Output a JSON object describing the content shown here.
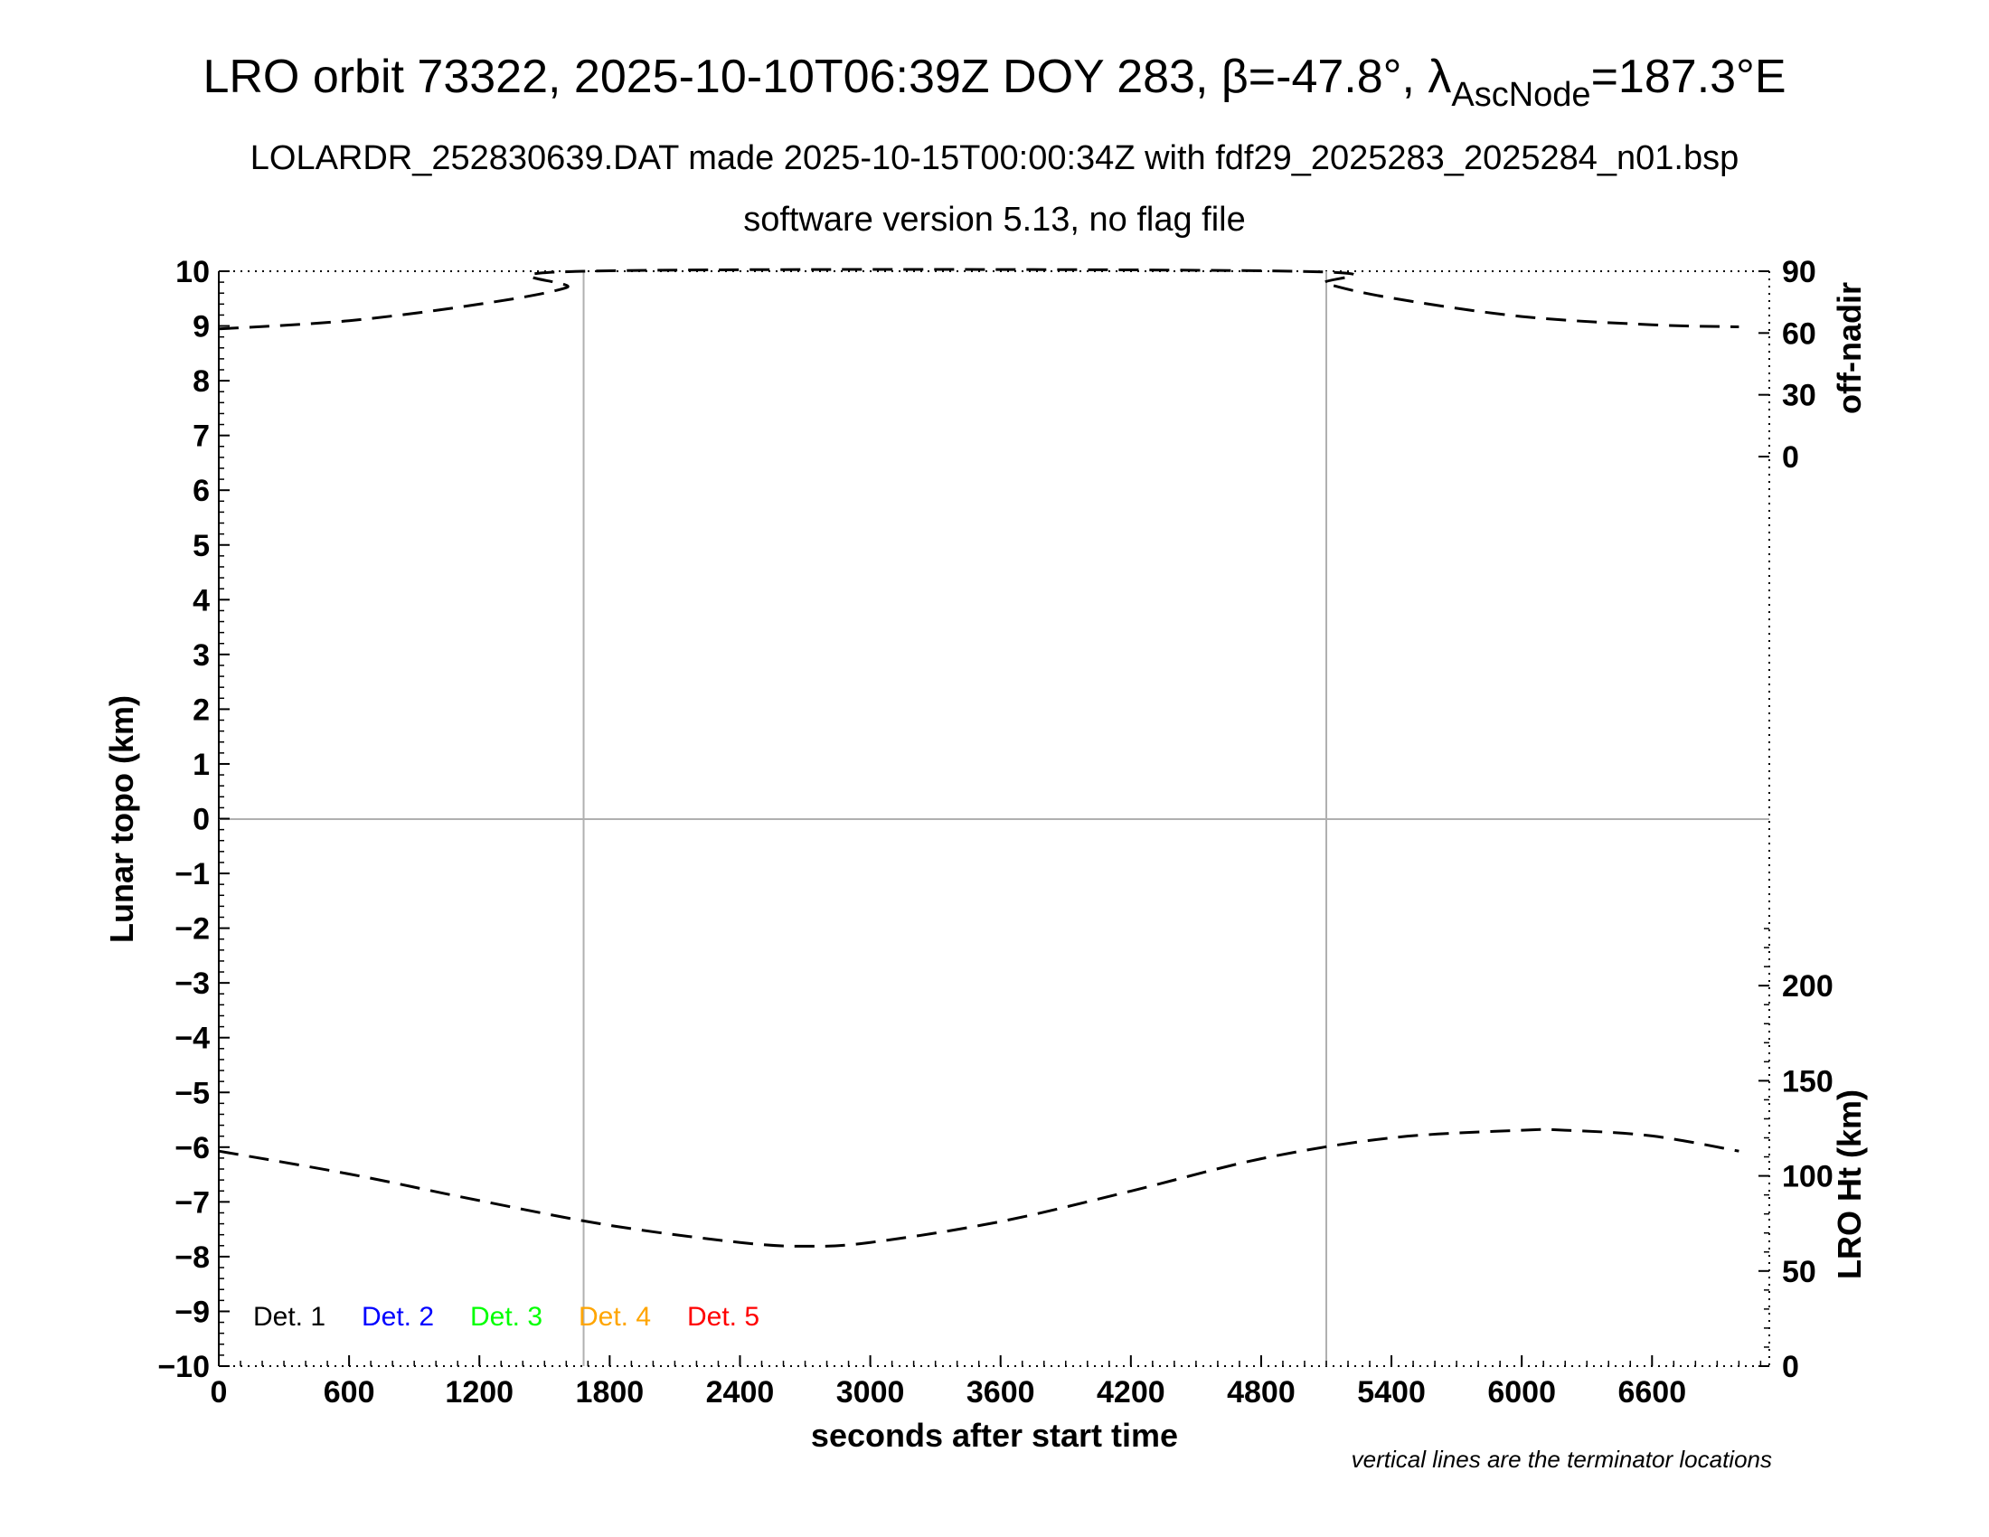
{
  "header": {
    "title_main": "LRO orbit 73322, 2025-10-10T06:39Z DOY 283, β=-47.8°, λ",
    "title_sub": "AscNode",
    "title_tail": "=187.3°E",
    "line2": "LOLARDR_252830639.DAT made 2025-10-15T00:00:34Z with fdf29_2025283_2025284_n01.bsp",
    "line3": "software version 5.13, no flag file"
  },
  "axes": {
    "xlabel": "seconds after start time",
    "ylabel_left": "Lunar topo (km)",
    "ylabel_right_top": "off-nadir",
    "ylabel_right_bottom": "LRO Ht (km)"
  },
  "footnote": "vertical lines are the terminator locations",
  "chart_data": {
    "type": "line",
    "x_range": [
      0,
      7140
    ],
    "x_ticks": [
      0,
      600,
      1200,
      1800,
      2400,
      3000,
      3600,
      4200,
      4800,
      5400,
      6000,
      6600
    ],
    "y_left_range": [
      -10,
      10
    ],
    "y_left_ticks": [
      10,
      9,
      8,
      7,
      6,
      5,
      4,
      3,
      2,
      1,
      0,
      -1,
      -2,
      -3,
      -4,
      -5,
      -6,
      -7,
      -8,
      -9,
      -10
    ],
    "y_left_tick_labels": [
      "10",
      "9",
      "8",
      "7",
      "6",
      "5",
      "4",
      "3",
      "2",
      "1",
      "0",
      "−1",
      "−2",
      "−3",
      "−4",
      "−5",
      "−6",
      "−7",
      "−8",
      "−9",
      "−10"
    ],
    "off_nadir_axis": {
      "range": [
        0,
        90
      ],
      "ticks": [
        90,
        60,
        30,
        0
      ]
    },
    "lro_height_axis": {
      "range": [
        0,
        240
      ],
      "ticks": [
        200,
        150,
        100,
        50,
        0
      ]
    },
    "terminator_lines_x": [
      1680,
      5100
    ],
    "grid": false,
    "legend": [
      {
        "name": "Det. 1",
        "color": "#000000"
      },
      {
        "name": "Det. 2",
        "color": "#0000ff"
      },
      {
        "name": "Det. 3",
        "color": "#00ff00"
      },
      {
        "name": "Det. 4",
        "color": "#ffa500"
      },
      {
        "name": "Det. 5",
        "color": "#ff0000"
      }
    ],
    "series": [
      {
        "axis": "off-nadir",
        "style": "dashed",
        "x": [
          0,
          600,
          1200,
          1600,
          1680,
          4950,
          5100,
          5400,
          6000,
          6600,
          7000
        ],
        "y": [
          62,
          66,
          74,
          82,
          90,
          90,
          84,
          77,
          68,
          64,
          63
        ]
      },
      {
        "axis": "lro-height",
        "style": "dashed",
        "x": [
          0,
          600,
          1200,
          1800,
          2400,
          2700,
          3000,
          3600,
          4200,
          4800,
          5400,
          6000,
          6200,
          6600,
          7000
        ],
        "y": [
          113,
          101,
          87,
          74,
          65,
          63,
          65,
          76,
          92,
          109,
          120,
          124,
          124,
          121,
          113
        ]
      }
    ]
  }
}
